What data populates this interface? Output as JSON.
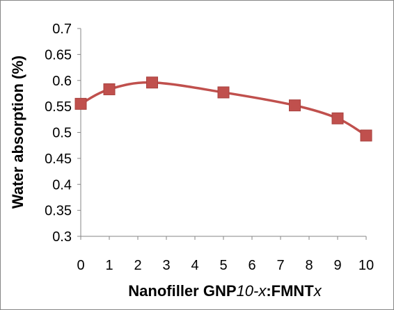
{
  "chart_data": {
    "type": "line",
    "xlabel_parts": [
      {
        "text": "Nanofiller GNP",
        "italic": false
      },
      {
        "text": "10-x",
        "italic": true
      },
      {
        "text": ":FMNT",
        "italic": false
      },
      {
        "text": "x",
        "italic": true
      }
    ],
    "ylabel": "Water absorption (%)",
    "x": [
      0,
      1,
      2.5,
      5,
      7.5,
      9,
      10
    ],
    "series": [
      {
        "values": [
          0.555,
          0.583,
          0.596,
          0.577,
          0.552,
          0.527,
          0.494
        ]
      }
    ],
    "xlim": [
      0,
      10
    ],
    "ylim": [
      0.3,
      0.7
    ],
    "xticks": [
      0,
      1,
      2,
      3,
      4,
      5,
      6,
      7,
      8,
      9,
      10
    ],
    "yticks": [
      "0.3",
      "0.35",
      "0.4",
      "0.45",
      "0.5",
      "0.55",
      "0.6",
      "0.65",
      "0.7"
    ],
    "grid": false,
    "legend": "none",
    "colors": {
      "line": "#C0504D",
      "marker": "#C0504D",
      "axis": "#868686"
    },
    "marker": "square",
    "smooth": true
  }
}
